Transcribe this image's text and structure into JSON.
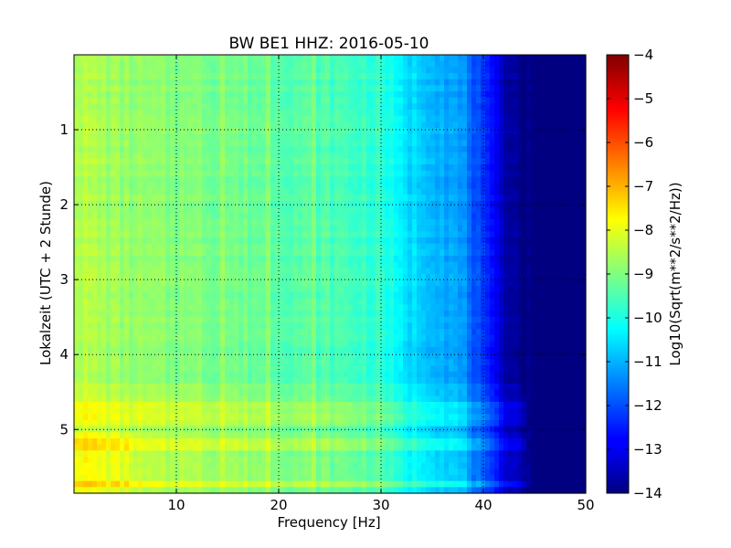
{
  "chart_data": {
    "type": "heatmap",
    "title": "BW BE1 HHZ: 2016-05-10",
    "xlabel": "Frequency [Hz]",
    "ylabel": "Lokalzeit (UTC + 2 Stunde)",
    "colorbar_label": "Log10(Sqrt(m**2/s**2/Hz))",
    "xlim": [
      0,
      50
    ],
    "ylim": [
      5.85,
      0
    ],
    "xticks": [
      10,
      20,
      30,
      40,
      50
    ],
    "yticks": [
      1,
      2,
      3,
      4,
      5
    ],
    "grid": true,
    "colormap": "jet",
    "clim": [
      -14,
      -4
    ],
    "colorbar_ticks": [
      -4,
      -5,
      -6,
      -7,
      -8,
      -9,
      -10,
      -11,
      -12,
      -13,
      -14
    ],
    "spectrum_profile": {
      "frequency_hz": [
        0,
        5,
        10,
        15,
        20,
        25,
        30,
        32,
        35,
        38,
        40,
        42,
        44,
        50
      ],
      "value": [
        -8.4,
        -8.8,
        -9.0,
        -9.1,
        -9.3,
        -9.5,
        -9.8,
        -10.5,
        -10.8,
        -11.3,
        -12.4,
        -13.4,
        -14.0,
        -14.0
      ]
    },
    "bright_bands_hours": [
      4.73,
      4.87,
      5.18,
      5.72
    ],
    "bright_lines_hz": [
      10.5,
      12.3,
      14.6,
      18.8,
      23.3
    ]
  }
}
